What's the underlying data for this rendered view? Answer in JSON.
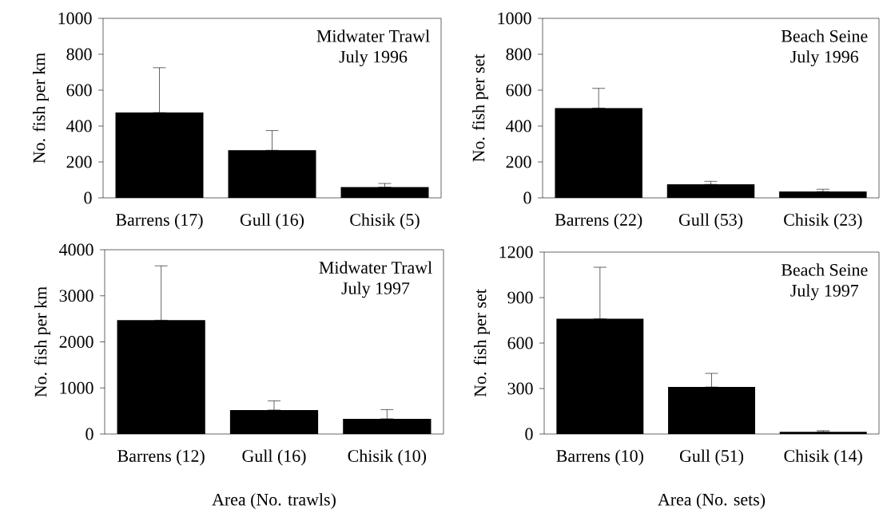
{
  "chart_data": [
    {
      "type": "bar",
      "title": "Midwater Trawl",
      "subtitle": "July 1996",
      "ylabel": "No. fish per km",
      "categories": [
        "Barrens (17)",
        "Gull (16)",
        "Chisik (5)"
      ],
      "values": [
        475,
        265,
        60
      ],
      "errors": [
        [
          475,
          725
        ],
        [
          265,
          375
        ],
        [
          60,
          80
        ]
      ],
      "color": "#000000",
      "ylim": [
        0,
        1000
      ],
      "yticks": [
        0,
        200,
        400,
        600,
        800,
        1000
      ]
    },
    {
      "type": "bar",
      "title": "Beach Seine",
      "subtitle": "July 1996",
      "ylabel": "No. fish per set",
      "categories": [
        "Barrens (22)",
        "Gull (53)",
        "Chisik (23)"
      ],
      "values": [
        500,
        75,
        35
      ],
      "errors": [
        [
          500,
          610
        ],
        [
          75,
          92
        ],
        [
          35,
          48
        ]
      ],
      "color": "#000000",
      "ylim": [
        0,
        1000
      ],
      "yticks": [
        0,
        200,
        400,
        600,
        800,
        1000
      ]
    },
    {
      "type": "bar",
      "title": "Midwater Trawl",
      "subtitle": "July 1997",
      "ylabel": "No. fish per km",
      "xlabel": "Area (No. trawls)",
      "categories": [
        "Barrens (12)",
        "Gull (16)",
        "Chisik (10)"
      ],
      "values": [
        2470,
        520,
        330
      ],
      "errors": [
        [
          2470,
          3650
        ],
        [
          520,
          720
        ],
        [
          330,
          530
        ]
      ],
      "color": "#000000",
      "ylim": [
        0,
        4000
      ],
      "yticks": [
        0,
        1000,
        2000,
        3000,
        4000
      ]
    },
    {
      "type": "bar",
      "title": "Beach Seine",
      "subtitle": "July 1997",
      "ylabel": "No. fish per set",
      "xlabel": "Area (No. sets)",
      "categories": [
        "Barrens (10)",
        "Gull (51)",
        "Chisik (14)"
      ],
      "values": [
        760,
        310,
        15
      ],
      "errors": [
        [
          760,
          1100
        ],
        [
          310,
          400
        ],
        [
          15,
          22
        ]
      ],
      "color": "#000000",
      "ylim": [
        0,
        1200
      ],
      "yticks": [
        0,
        300,
        600,
        900,
        1200
      ]
    }
  ]
}
